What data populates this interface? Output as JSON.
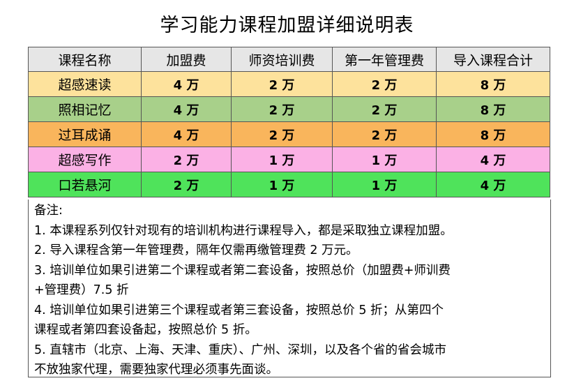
{
  "title": "学习能力课程加盟详细说明表",
  "table": {
    "headers": [
      "课程名称",
      "加盟费",
      "师资培训费",
      "第一年管理费",
      "导入课程合计"
    ],
    "rows": [
      {
        "color": "#fde29c",
        "cells": [
          "超感速读",
          "4 万",
          "2 万",
          "2 万",
          "8 万"
        ]
      },
      {
        "color": "#a8d08a",
        "cells": [
          "照相记忆",
          "4 万",
          "2 万",
          "2 万",
          "8 万"
        ]
      },
      {
        "color": "#f9b55c",
        "cells": [
          "过耳成诵",
          "4 万",
          "2 万",
          "2 万",
          "8 万"
        ]
      },
      {
        "color": "#fbb1e5",
        "cells": [
          "超感写作",
          "2 万",
          "1 万",
          "1 万",
          "4 万"
        ]
      },
      {
        "color": "#4fe35b",
        "cells": [
          "口若悬河",
          "2 万",
          "1 万",
          "1 万",
          "4 万"
        ]
      }
    ]
  },
  "notes": {
    "heading": "备注:",
    "lines": [
      "1.  本课程系列仅针对现有的培训机构进行课程导入，都是采取独立课程加盟。",
      "2.  导入课程含第一年管理费，隔年仅需再缴管理费 2 万元。",
      "3.  培训单位如果引进第二个课程或者第二套设备，按照总价（加盟费+师训费",
      "+管理费）7.5 折",
      "4.  培训单位如果引进第三个课程或者第三套设备，按照总价 5 折；从第四个",
      "课程或者第四套设备起，按照总价 5 折。",
      "5.  直辖市（北京、上海、天津、重庆）、广州、深圳，以及各个省的省会城市",
      "不放独家代理，需要独家代理必须事先面谈。"
    ]
  }
}
